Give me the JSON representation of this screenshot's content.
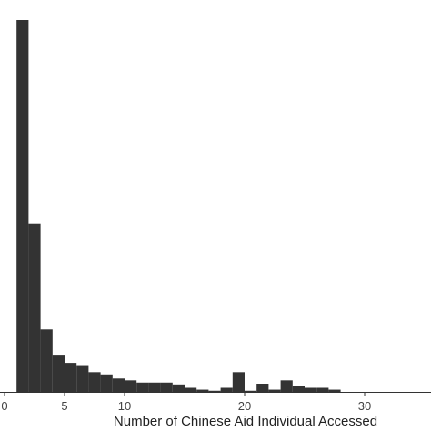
{
  "chart_data": {
    "type": "bar",
    "subtype": "histogram",
    "xlabel": "Number of Chinese Aid Individual Accessed",
    "ylabel": "",
    "title": "",
    "xlim": [
      0,
      35
    ],
    "ylim": [
      0,
      1000
    ],
    "x_ticks": [
      0,
      5,
      10,
      20,
      30
    ],
    "bin_width": 1,
    "bins": [
      {
        "x0": 0,
        "x1": 1,
        "count": 0
      },
      {
        "x0": 1,
        "x1": 2,
        "count": 1000
      },
      {
        "x0": 2,
        "x1": 3,
        "count": 453
      },
      {
        "x0": 3,
        "x1": 4,
        "count": 168
      },
      {
        "x0": 4,
        "x1": 5,
        "count": 100
      },
      {
        "x0": 5,
        "x1": 6,
        "count": 78
      },
      {
        "x0": 6,
        "x1": 7,
        "count": 72
      },
      {
        "x0": 7,
        "x1": 8,
        "count": 53
      },
      {
        "x0": 8,
        "x1": 9,
        "count": 47
      },
      {
        "x0": 9,
        "x1": 10,
        "count": 36
      },
      {
        "x0": 10,
        "x1": 11,
        "count": 31
      },
      {
        "x0": 11,
        "x1": 12,
        "count": 25
      },
      {
        "x0": 12,
        "x1": 13,
        "count": 25
      },
      {
        "x0": 13,
        "x1": 14,
        "count": 25
      },
      {
        "x0": 14,
        "x1": 15,
        "count": 20
      },
      {
        "x0": 15,
        "x1": 16,
        "count": 11
      },
      {
        "x0": 16,
        "x1": 17,
        "count": 6
      },
      {
        "x0": 17,
        "x1": 18,
        "count": 3
      },
      {
        "x0": 18,
        "x1": 19,
        "count": 11
      },
      {
        "x0": 19,
        "x1": 20,
        "count": 53
      },
      {
        "x0": 20,
        "x1": 21,
        "count": 3
      },
      {
        "x0": 21,
        "x1": 22,
        "count": 22
      },
      {
        "x0": 22,
        "x1": 23,
        "count": 6
      },
      {
        "x0": 23,
        "x1": 24,
        "count": 31
      },
      {
        "x0": 24,
        "x1": 25,
        "count": 17
      },
      {
        "x0": 25,
        "x1": 26,
        "count": 11
      },
      {
        "x0": 26,
        "x1": 27,
        "count": 11
      },
      {
        "x0": 27,
        "x1": 28,
        "count": 6
      }
    ],
    "bar_color": "#333333",
    "grid": false,
    "legend": "none"
  }
}
